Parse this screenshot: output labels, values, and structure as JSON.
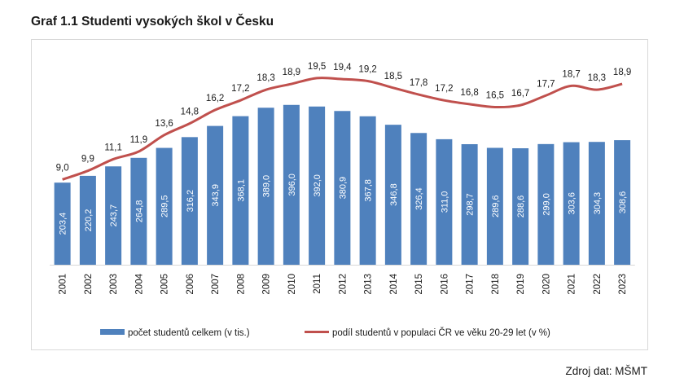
{
  "title": "Graf 1.1 Studenti vysokých škol v Česku",
  "source": "Zdroj dat: MŠMT",
  "chart_data": {
    "type": "bar",
    "categories": [
      "2001",
      "2002",
      "2003",
      "2004",
      "2005",
      "2006",
      "2007",
      "2008",
      "2009",
      "2010",
      "2011",
      "2012",
      "2013",
      "2014",
      "2015",
      "2016",
      "2017",
      "2018",
      "2019",
      "2020",
      "2021",
      "2022",
      "2023"
    ],
    "series": [
      {
        "name": "počet studentů celkem (v tis.)",
        "type": "bar",
        "color": "#4f81bd",
        "values": [
          203.4,
          220.2,
          243.7,
          264.8,
          289.5,
          316.2,
          343.9,
          368.1,
          389.0,
          396.0,
          392.0,
          380.9,
          367.8,
          346.8,
          326.4,
          311.0,
          298.7,
          289.6,
          288.6,
          299.0,
          303.6,
          304.3,
          308.6
        ],
        "labels": [
          "203,4",
          "220,2",
          "243,7",
          "264,8",
          "289,5",
          "316,2",
          "343,9",
          "368,1",
          "389,0",
          "396,0",
          "392,0",
          "380,9",
          "367,8",
          "346,8",
          "326,4",
          "311,0",
          "298,7",
          "289,6",
          "288,6",
          "299,0",
          "303,6",
          "304,3",
          "308,6"
        ]
      },
      {
        "name": "podíl studentů v populaci ČR ve věku 20-29 let (v %)",
        "type": "line",
        "color": "#c0504d",
        "values": [
          9.0,
          9.9,
          11.1,
          11.9,
          13.6,
          14.8,
          16.2,
          17.2,
          18.3,
          18.9,
          19.5,
          19.4,
          19.2,
          18.5,
          17.8,
          17.2,
          16.8,
          16.5,
          16.7,
          17.7,
          18.7,
          18.3,
          18.9
        ],
        "labels": [
          "9,0",
          "9,9",
          "11,1",
          "11,9",
          "13,6",
          "14,8",
          "16,2",
          "17,2",
          "18,3",
          "18,9",
          "19,5",
          "19,4",
          "19,2",
          "18,5",
          "17,8",
          "17,2",
          "16,8",
          "16,5",
          "16,7",
          "17,7",
          "18,7",
          "18,3",
          "18,9"
        ]
      }
    ],
    "legend_position": "bottom",
    "grid": false
  }
}
